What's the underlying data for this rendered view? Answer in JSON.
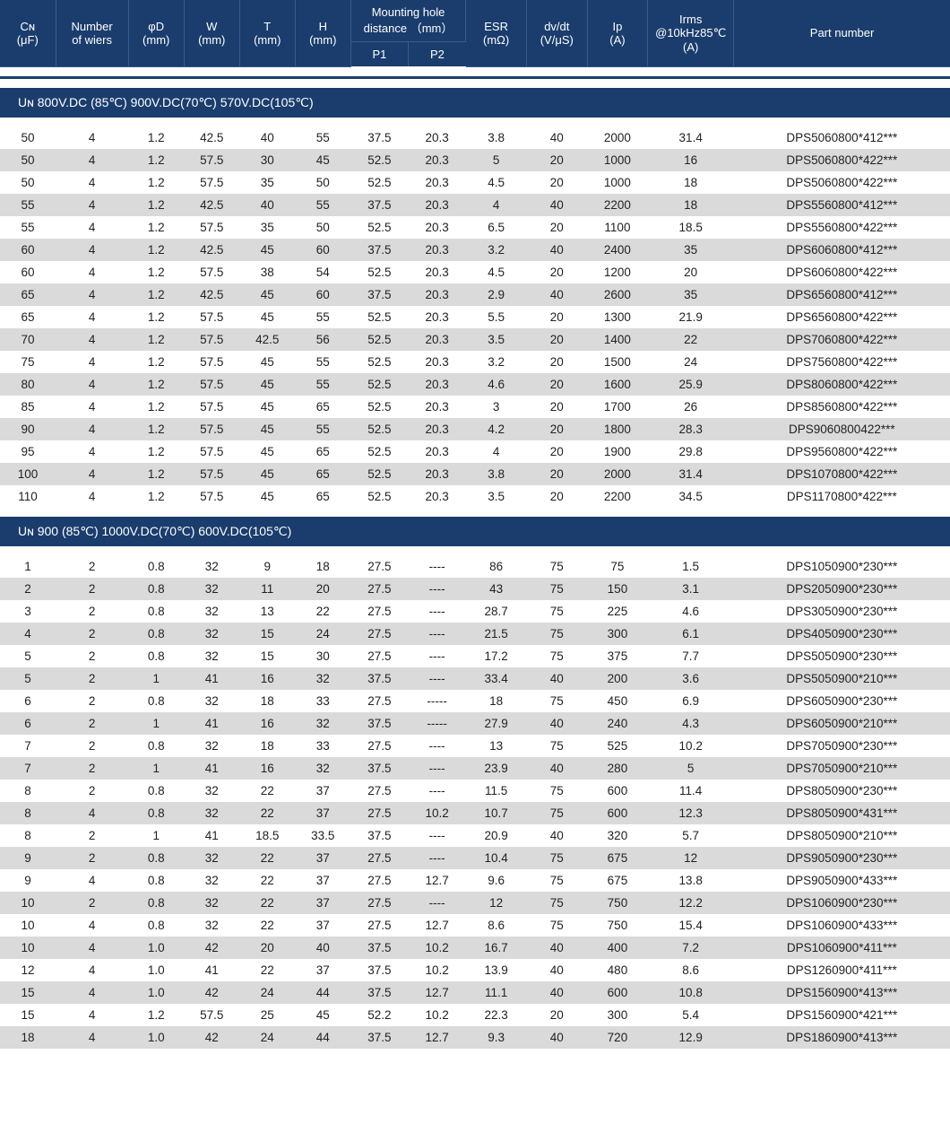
{
  "colors": {
    "header_bg": "#1a3d6d",
    "header_text": "#ffffff",
    "row_even": "#dadada",
    "row_odd": "#ffffff",
    "body_text": "#222222",
    "header_border": "#3a5a8a"
  },
  "headers": {
    "cn": "Cɴ\n(μF)",
    "wiers": "Number\nof wiers",
    "phi_d": "φD\n(mm)",
    "w": "W\n(mm)",
    "t": "T\n(mm)",
    "h": "H\n(mm)",
    "mount_group": "Mounting hole\ndistance （mm）",
    "p1": "P1",
    "p2": "P2",
    "esr": "ESR\n(mΩ)",
    "dvdt": "dv/dt\n(V/μS)",
    "ip": "Ip\n(A)",
    "irms": "Irms\n@10kHz85℃\n(A)",
    "part": "Part number"
  },
  "sections": [
    {
      "title": "Uɴ 800V.DC (85℃)  900V.DC(70℃)  570V.DC(105℃)",
      "rows": [
        [
          "50",
          "4",
          "1.2",
          "42.5",
          "40",
          "55",
          "37.5",
          "20.3",
          "3.8",
          "40",
          "2000",
          "31.4",
          "DPS5060800*412***"
        ],
        [
          "50",
          "4",
          "1.2",
          "57.5",
          "30",
          "45",
          "52.5",
          "20.3",
          "5",
          "20",
          "1000",
          "16",
          "DPS5060800*422***"
        ],
        [
          "50",
          "4",
          "1.2",
          "57.5",
          "35",
          "50",
          "52.5",
          "20.3",
          "4.5",
          "20",
          "1000",
          "18",
          "DPS5060800*422***"
        ],
        [
          "55",
          "4",
          "1.2",
          "42.5",
          "40",
          "55",
          "37.5",
          "20.3",
          "4",
          "40",
          "2200",
          "18",
          "DPS5560800*412***"
        ],
        [
          "55",
          "4",
          "1.2",
          "57.5",
          "35",
          "50",
          "52.5",
          "20.3",
          "6.5",
          "20",
          "1100",
          "18.5",
          "DPS5560800*422***"
        ],
        [
          "60",
          "4",
          "1.2",
          "42.5",
          "45",
          "60",
          "37.5",
          "20.3",
          "3.2",
          "40",
          "2400",
          "35",
          "DPS6060800*412***"
        ],
        [
          "60",
          "4",
          "1.2",
          "57.5",
          "38",
          "54",
          "52.5",
          "20.3",
          "4.5",
          "20",
          "1200",
          "20",
          "DPS6060800*422***"
        ],
        [
          "65",
          "4",
          "1.2",
          "42.5",
          "45",
          "60",
          "37.5",
          "20.3",
          "2.9",
          "40",
          "2600",
          "35",
          "DPS6560800*412***"
        ],
        [
          "65",
          "4",
          "1.2",
          "57.5",
          "45",
          "55",
          "52.5",
          "20.3",
          "5.5",
          "20",
          "1300",
          "21.9",
          "DPS6560800*422***"
        ],
        [
          "70",
          "4",
          "1.2",
          "57.5",
          "42.5",
          "56",
          "52.5",
          "20.3",
          "3.5",
          "20",
          "1400",
          "22",
          "DPS7060800*422***"
        ],
        [
          "75",
          "4",
          "1.2",
          "57.5",
          "45",
          "55",
          "52.5",
          "20.3",
          "3.2",
          "20",
          "1500",
          "24",
          "DPS7560800*422***"
        ],
        [
          "80",
          "4",
          "1.2",
          "57.5",
          "45",
          "55",
          "52.5",
          "20.3",
          "4.6",
          "20",
          "1600",
          "25.9",
          "DPS8060800*422***"
        ],
        [
          "85",
          "4",
          "1.2",
          "57.5",
          "45",
          "65",
          "52.5",
          "20.3",
          "3",
          "20",
          "1700",
          "26",
          "DPS8560800*422***"
        ],
        [
          "90",
          "4",
          "1.2",
          "57.5",
          "45",
          "55",
          "52.5",
          "20.3",
          "4.2",
          "20",
          "1800",
          "28.3",
          "DPS9060800422***"
        ],
        [
          "95",
          "4",
          "1.2",
          "57.5",
          "45",
          "65",
          "52.5",
          "20.3",
          "4",
          "20",
          "1900",
          "29.8",
          "DPS9560800*422***"
        ],
        [
          "100",
          "4",
          "1.2",
          "57.5",
          "45",
          "65",
          "52.5",
          "20.3",
          "3.8",
          "20",
          "2000",
          "31.4",
          "DPS1070800*422***"
        ],
        [
          "110",
          "4",
          "1.2",
          "57.5",
          "45",
          "65",
          "52.5",
          "20.3",
          "3.5",
          "20",
          "2200",
          "34.5",
          "DPS1170800*422***"
        ]
      ]
    },
    {
      "title": "Uɴ 900 (85℃)  1000V.DC(70℃)  600V.DC(105℃)",
      "rows": [
        [
          "1",
          "2",
          "0.8",
          "32",
          "9",
          "18",
          "27.5",
          "----",
          "86",
          "75",
          "75",
          "1.5",
          "DPS1050900*230***"
        ],
        [
          "2",
          "2",
          "0.8",
          "32",
          "11",
          "20",
          "27.5",
          "----",
          "43",
          "75",
          "150",
          "3.1",
          "DPS2050900*230***"
        ],
        [
          "3",
          "2",
          "0.8",
          "32",
          "13",
          "22",
          "27.5",
          "----",
          "28.7",
          "75",
          "225",
          "4.6",
          "DPS3050900*230***"
        ],
        [
          "4",
          "2",
          "0.8",
          "32",
          "15",
          "24",
          "27.5",
          "----",
          "21.5",
          "75",
          "300",
          "6.1",
          "DPS4050900*230***"
        ],
        [
          "5",
          "2",
          "0.8",
          "32",
          "15",
          "30",
          "27.5",
          "----",
          "17.2",
          "75",
          "375",
          "7.7",
          "DPS5050900*230***"
        ],
        [
          "5",
          "2",
          "1",
          "41",
          "16",
          "32",
          "37.5",
          "----",
          "33.4",
          "40",
          "200",
          "3.6",
          "DPS5050900*210***"
        ],
        [
          "6",
          "2",
          "0.8",
          "32",
          "18",
          "33",
          "27.5",
          "-----",
          "18",
          "75",
          "450",
          "6.9",
          "DPS6050900*230***"
        ],
        [
          "6",
          "2",
          "1",
          "41",
          "16",
          "32",
          "37.5",
          "-----",
          "27.9",
          "40",
          "240",
          "4.3",
          "DPS6050900*210***"
        ],
        [
          "7",
          "2",
          "0.8",
          "32",
          "18",
          "33",
          "27.5",
          "----",
          "13",
          "75",
          "525",
          "10.2",
          "DPS7050900*230***"
        ],
        [
          "7",
          "2",
          "1",
          "41",
          "16",
          "32",
          "37.5",
          "----",
          "23.9",
          "40",
          "280",
          "5",
          "DPS7050900*210***"
        ],
        [
          "8",
          "2",
          "0.8",
          "32",
          "22",
          "37",
          "27.5",
          "----",
          "11.5",
          "75",
          "600",
          "11.4",
          "DPS8050900*230***"
        ],
        [
          "8",
          "4",
          "0.8",
          "32",
          "22",
          "37",
          "27.5",
          "10.2",
          "10.7",
          "75",
          "600",
          "12.3",
          "DPS8050900*431***"
        ],
        [
          "8",
          "2",
          "1",
          "41",
          "18.5",
          "33.5",
          "37.5",
          "----",
          "20.9",
          "40",
          "320",
          "5.7",
          "DPS8050900*210***"
        ],
        [
          "9",
          "2",
          "0.8",
          "32",
          "22",
          "37",
          "27.5",
          "----",
          "10.4",
          "75",
          "675",
          "12",
          "DPS9050900*230***"
        ],
        [
          "9",
          "4",
          "0.8",
          "32",
          "22",
          "37",
          "27.5",
          "12.7",
          "9.6",
          "75",
          "675",
          "13.8",
          "DPS9050900*433***"
        ],
        [
          "10",
          "2",
          "0.8",
          "32",
          "22",
          "37",
          "27.5",
          "----",
          "12",
          "75",
          "750",
          "12.2",
          "DPS1060900*230***"
        ],
        [
          "10",
          "4",
          "0.8",
          "32",
          "22",
          "37",
          "27.5",
          "12.7",
          "8.6",
          "75",
          "750",
          "15.4",
          "DPS1060900*433***"
        ],
        [
          "10",
          "4",
          "1.0",
          "42",
          "20",
          "40",
          "37.5",
          "10.2",
          "16.7",
          "40",
          "400",
          "7.2",
          "DPS1060900*411***"
        ],
        [
          "12",
          "4",
          "1.0",
          "41",
          "22",
          "37",
          "37.5",
          "10.2",
          "13.9",
          "40",
          "480",
          "8.6",
          "DPS1260900*411***"
        ],
        [
          "15",
          "4",
          "1.0",
          "42",
          "24",
          "44",
          "37.5",
          "12.7",
          "11.1",
          "40",
          "600",
          "10.8",
          "DPS1560900*413***"
        ],
        [
          "15",
          "4",
          "1.2",
          "57.5",
          "25",
          "45",
          "52.2",
          "10.2",
          "22.3",
          "20",
          "300",
          "5.4",
          "DPS1560900*421***"
        ],
        [
          "18",
          "4",
          "1.0",
          "42",
          "24",
          "44",
          "37.5",
          "12.7",
          "9.3",
          "40",
          "720",
          "12.9",
          "DPS1860900*413***"
        ]
      ]
    }
  ],
  "col_widths_pct": [
    5.5,
    7.2,
    5.5,
    5.5,
    5.5,
    5.5,
    5.7,
    5.7,
    6.0,
    6.0,
    6.0,
    8.5,
    21.4
  ]
}
